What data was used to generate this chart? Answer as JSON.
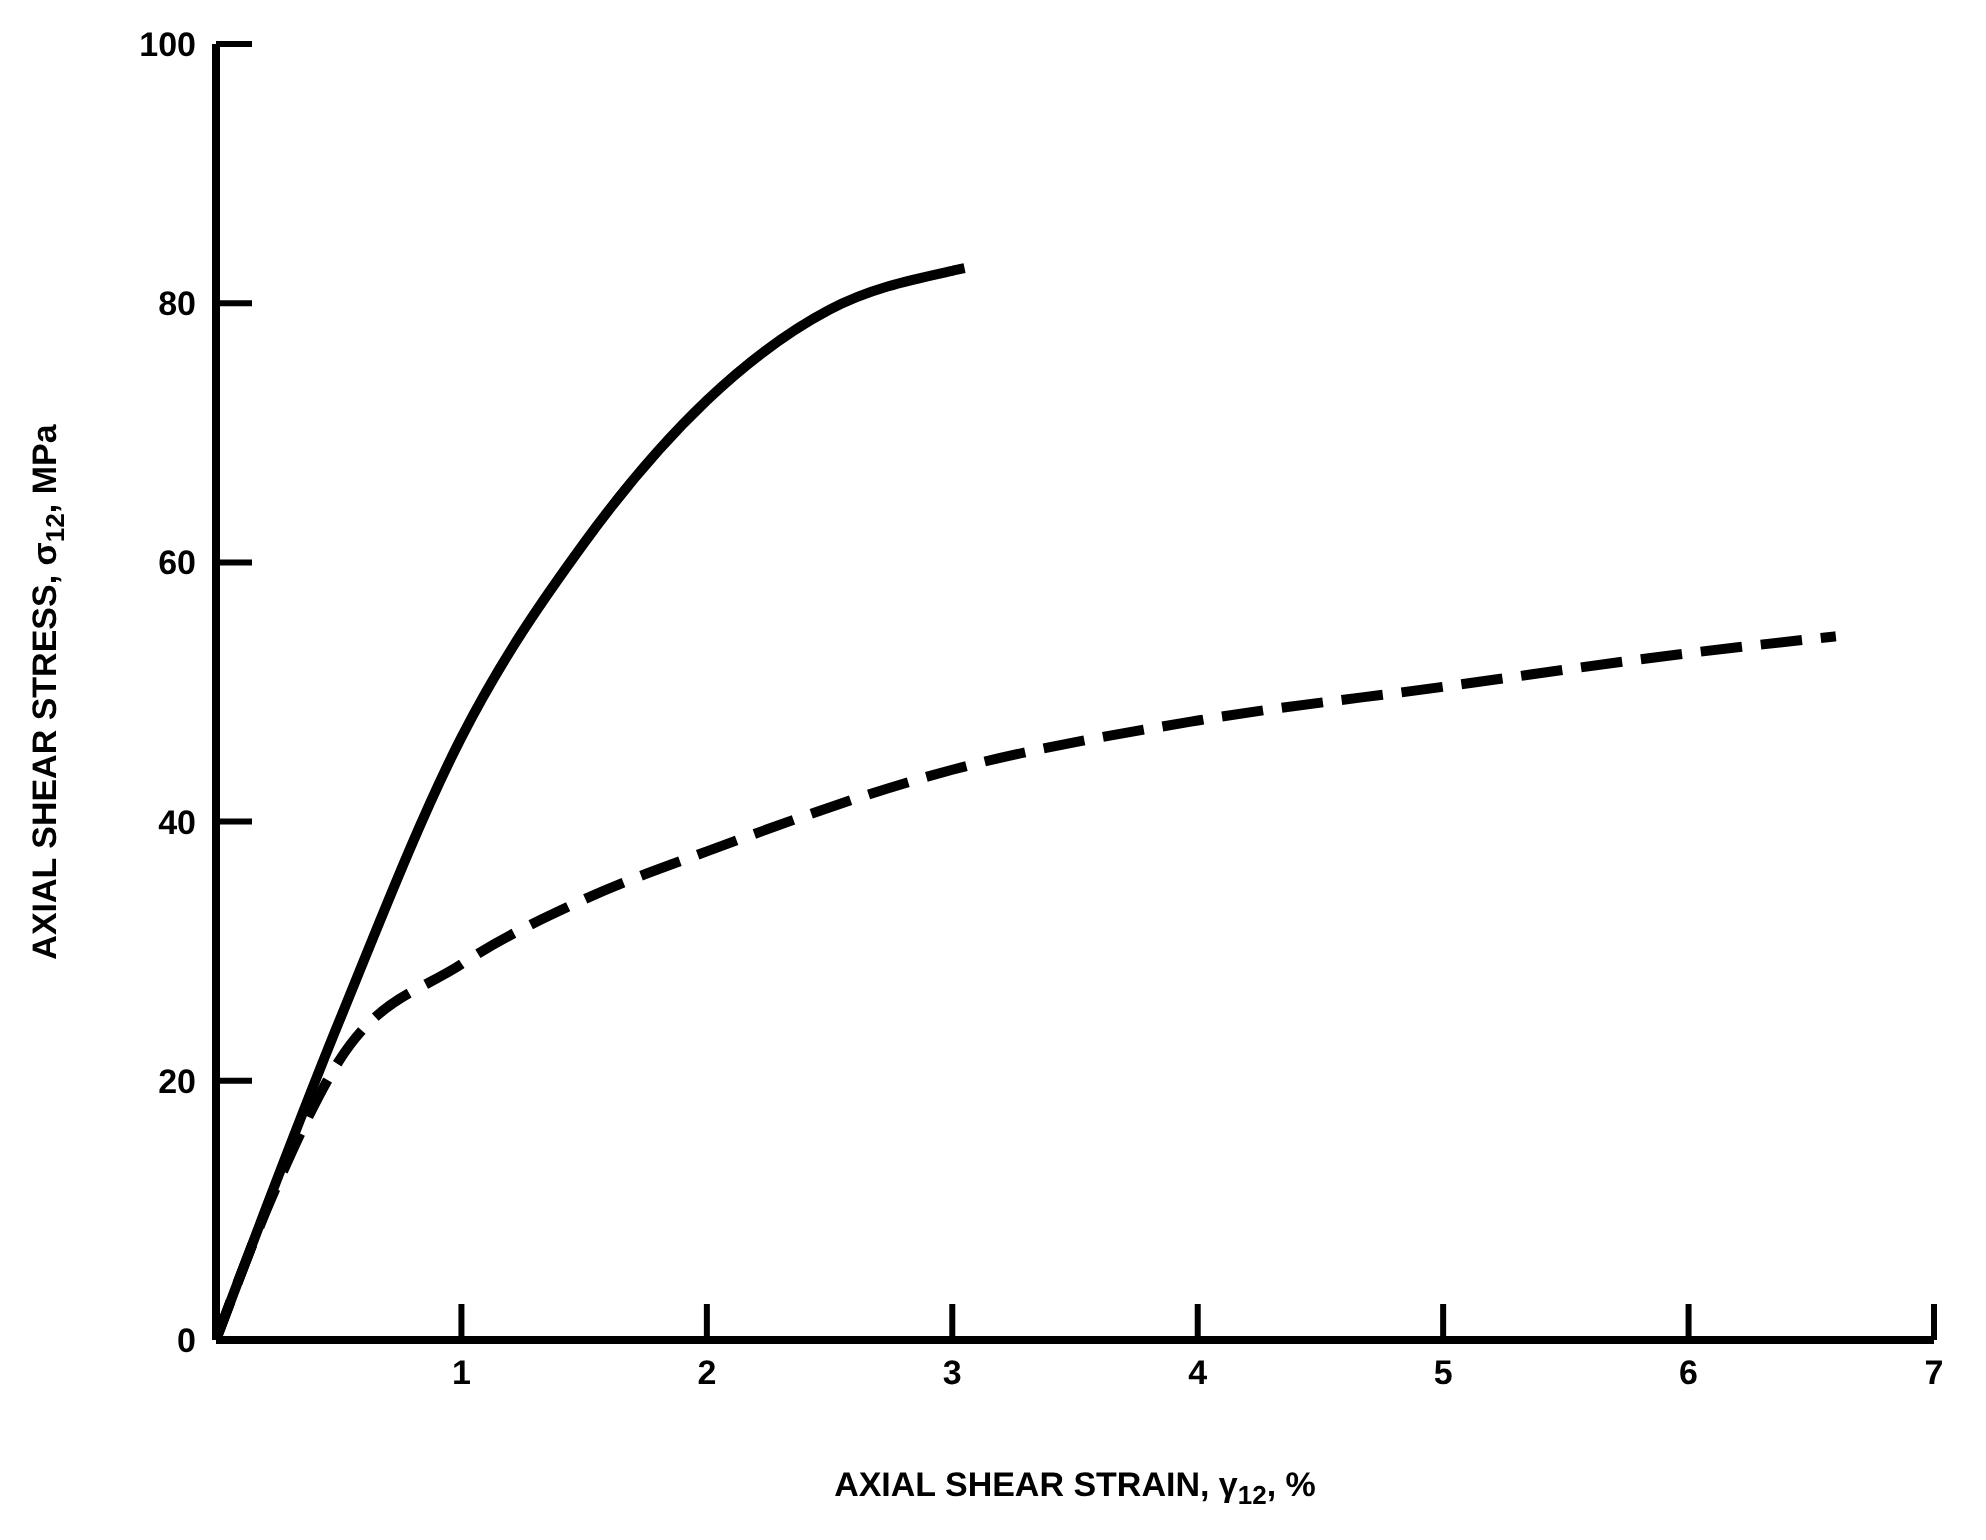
{
  "chart_data": {
    "type": "line",
    "xlabel": "AXIAL SHEAR STRAIN, γ$_{12}$, %",
    "ylabel": "AXIAL SHEAR STRESS, σ$_{12}$, MPa",
    "xlim": [
      0,
      7
    ],
    "xticks": [
      1,
      2,
      3,
      4,
      5,
      6,
      7
    ],
    "ylim": [
      0,
      100
    ],
    "yticks": [
      0,
      20,
      40,
      60,
      80,
      100
    ],
    "grid": false,
    "legend": false,
    "marker": "none",
    "series": [
      {
        "color": "#000000",
        "line_style": "solid",
        "x": [
          0,
          0.5,
          1,
          1.5,
          2,
          2.5,
          3,
          3.05
        ],
        "values": [
          0,
          24.5,
          46.5,
          61.5,
          72.5,
          79.5,
          82.5,
          82.7
        ]
      },
      {
        "color": "#000000",
        "line_style": "dashed",
        "x": [
          0,
          0.25,
          0.5,
          1,
          1.5,
          2,
          3,
          4,
          5,
          6,
          6.6
        ],
        "values": [
          0,
          12,
          21.5,
          29,
          34,
          37.7,
          44,
          47.8,
          50.4,
          53,
          54.3
        ]
      }
    ]
  }
}
